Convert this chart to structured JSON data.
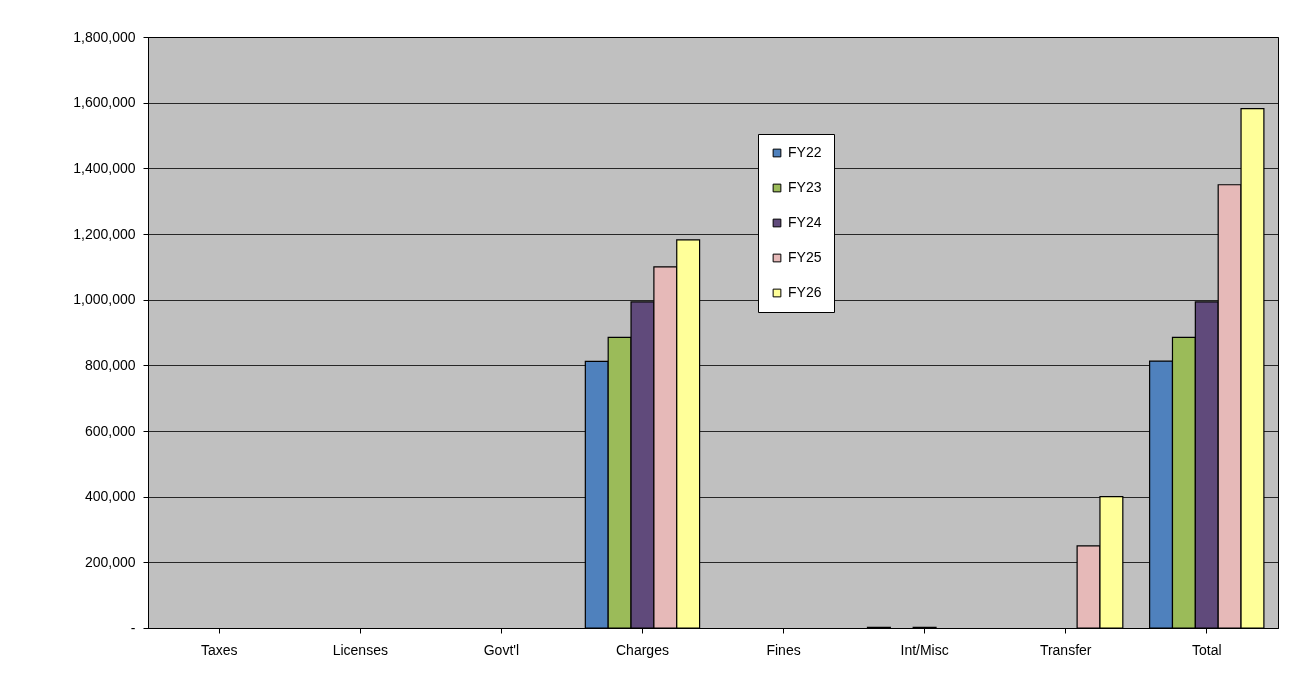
{
  "chart_data": {
    "type": "bar",
    "categories": [
      "Taxes",
      "Licenses",
      "Govt'l",
      "Charges",
      "Fines",
      "Int/Misc",
      "Transfer",
      "Total"
    ],
    "series": [
      {
        "name": "FY22",
        "color": "#4f81bd",
        "values": [
          null,
          null,
          null,
          812000,
          null,
          2000,
          null,
          813000
        ]
      },
      {
        "name": "FY23",
        "color": "#9bbb59",
        "values": [
          null,
          null,
          null,
          885000,
          null,
          null,
          null,
          885000
        ]
      },
      {
        "name": "FY24",
        "color": "#604a7b",
        "values": [
          null,
          null,
          null,
          993000,
          null,
          2000,
          null,
          993000
        ]
      },
      {
        "name": "FY25",
        "color": "#e6b9b8",
        "values": [
          null,
          null,
          null,
          1100000,
          null,
          null,
          250000,
          1350000
        ]
      },
      {
        "name": "FY26",
        "color": "#ffff99",
        "values": [
          null,
          null,
          null,
          1182000,
          null,
          null,
          400000,
          1582000
        ]
      }
    ],
    "ylim": [
      0,
      1800000
    ],
    "yticks": [
      {
        "value": 0,
        "label": "-"
      },
      {
        "value": 200000,
        "label": "200,000"
      },
      {
        "value": 400000,
        "label": "400,000"
      },
      {
        "value": 600000,
        "label": "600,000"
      },
      {
        "value": 800000,
        "label": "800,000"
      },
      {
        "value": 1000000,
        "label": "1,000,000"
      },
      {
        "value": 1200000,
        "label": "1,200,000"
      },
      {
        "value": 1400000,
        "label": "1,400,000"
      },
      {
        "value": 1600000,
        "label": "1,600,000"
      },
      {
        "value": 1800000,
        "label": "1,800,000"
      }
    ],
    "grid": "y",
    "legend": "top"
  }
}
